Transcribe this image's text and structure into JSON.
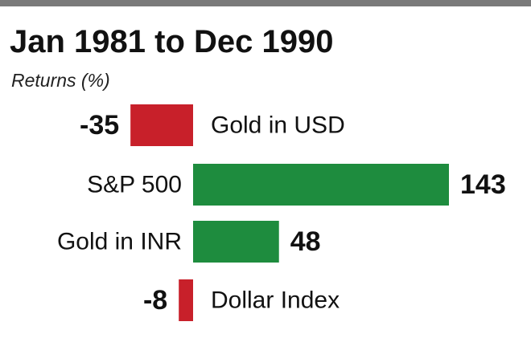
{
  "title": "Jan 1981 to Dec 1990",
  "subtitle": "Returns (%)",
  "colors": {
    "positive": "#1e8c3e",
    "negative": "#c8202a",
    "rule": "#7a7a7a",
    "text": "#111111"
  },
  "chart_data": {
    "type": "bar",
    "orientation": "horizontal",
    "title": "Jan 1981 to Dec 1990",
    "ylabel": "Returns (%)",
    "categories": [
      "Gold in USD",
      "S&P 500",
      "Gold in INR",
      "Dollar Index"
    ],
    "values": [
      -35,
      143,
      48,
      -8
    ],
    "value_labels": [
      "-35",
      "143",
      "48",
      "-8"
    ],
    "xlim": [
      -35,
      143
    ],
    "grid": false,
    "legend": "none"
  }
}
